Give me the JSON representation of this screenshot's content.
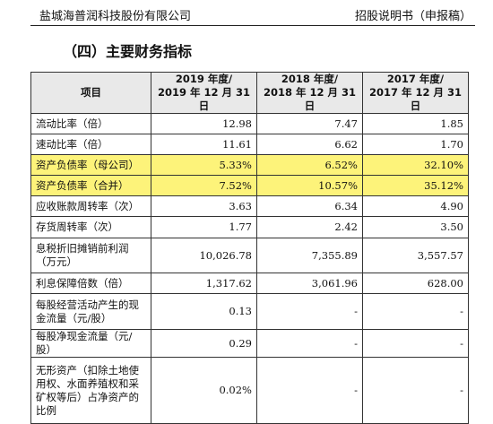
{
  "header": {
    "company": "盐城海普润科技股份有限公司",
    "doc_type": "招股说明书（申报稿）"
  },
  "section_title": "（四）主要财务指标",
  "table": {
    "item_header": "项目",
    "columns": [
      {
        "line1": "2019 年度/",
        "line2": "2019 年 12 月 31 日"
      },
      {
        "line1": "2018 年度/",
        "line2": "2018 年 12 月 31 日"
      },
      {
        "line1": "2017 年度/",
        "line2": "2017 年 12 月 31 日"
      }
    ],
    "rows": [
      {
        "label": "流动比率（倍）",
        "v2019": "12.98",
        "v2018": "7.47",
        "v2017": "1.85",
        "highlight": false
      },
      {
        "label": "速动比率（倍）",
        "v2019": "11.61",
        "v2018": "6.62",
        "v2017": "1.70",
        "highlight": false
      },
      {
        "label": "资产负债率（母公司）",
        "v2019": "5.33%",
        "v2018": "6.52%",
        "v2017": "32.10%",
        "highlight": true
      },
      {
        "label": "资产负债率（合并）",
        "v2019": "7.52%",
        "v2018": "10.57%",
        "v2017": "35.12%",
        "highlight": true
      },
      {
        "label": "应收账款周转率（次）",
        "v2019": "3.63",
        "v2018": "6.34",
        "v2017": "4.90",
        "highlight": false
      },
      {
        "label": "存货周转率（次）",
        "v2019": "1.77",
        "v2018": "2.42",
        "v2017": "3.50",
        "highlight": false
      },
      {
        "label": "息税折旧摊销前利润（万元）",
        "v2019": "10,026.78",
        "v2018": "7,355.89",
        "v2017": "3,557.57",
        "highlight": false
      },
      {
        "label": "利息保障倍数（倍）",
        "v2019": "1,317.62",
        "v2018": "3,061.96",
        "v2017": "628.00",
        "highlight": false
      },
      {
        "label": "每股经营活动产生的现金流量（元/股）",
        "v2019": "0.13",
        "v2018": "-",
        "v2017": "-",
        "highlight": false
      },
      {
        "label": "每股净现金流量（元/股）",
        "v2019": "0.29",
        "v2018": "-",
        "v2017": "-",
        "highlight": false
      },
      {
        "label": "无形资产（扣除土地使用权、水面养殖权和采矿权等后）占净资产的比例",
        "v2019": "0.02%",
        "v2018": "-",
        "v2017": "-",
        "highlight": false
      }
    ]
  }
}
